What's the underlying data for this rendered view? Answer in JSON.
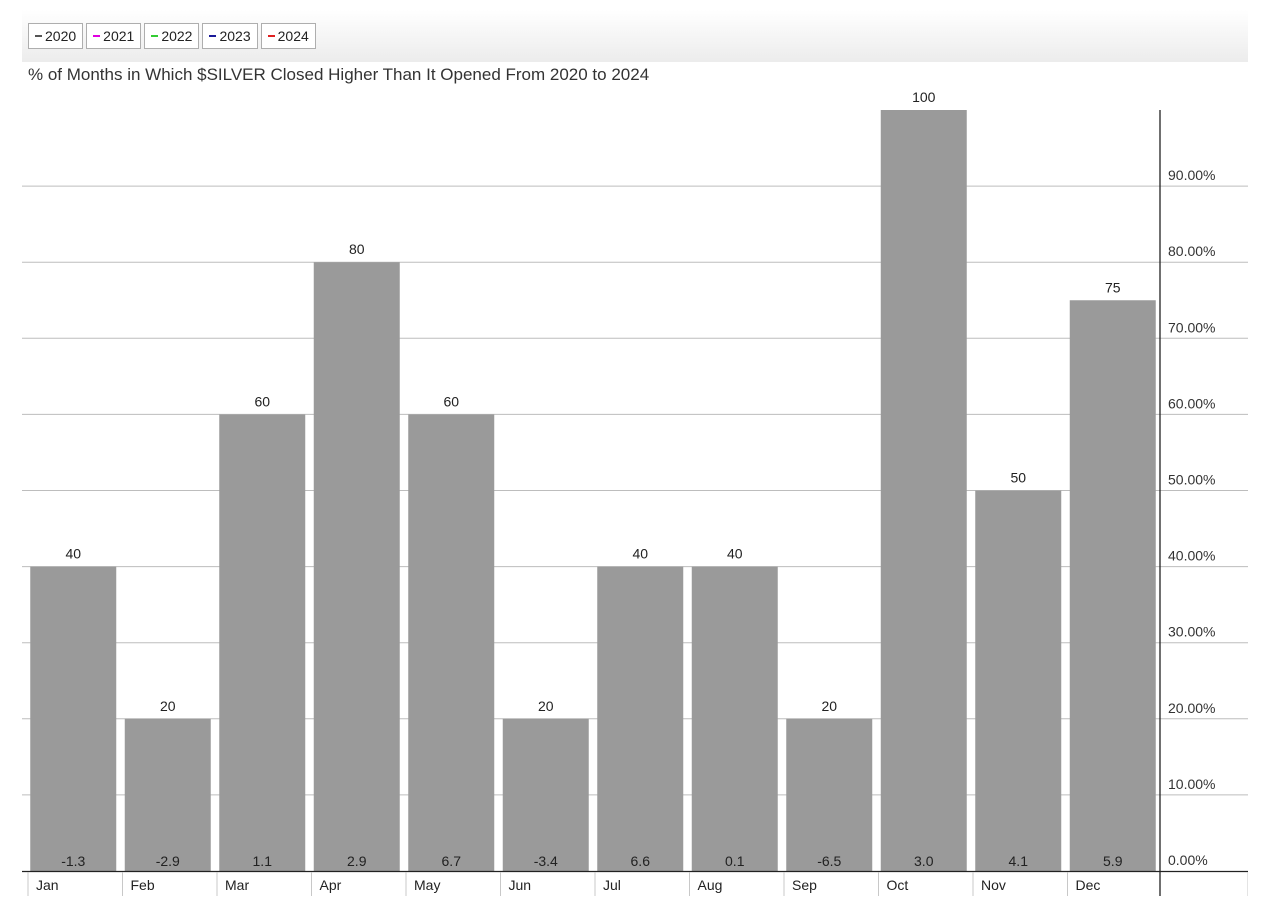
{
  "legend": [
    {
      "label": "2020",
      "color": "#555555"
    },
    {
      "label": "2021",
      "color": "#e000e0"
    },
    {
      "label": "2022",
      "color": "#33cc33"
    },
    {
      "label": "2023",
      "color": "#1a1a99"
    },
    {
      "label": "2024",
      "color": "#e02020"
    }
  ],
  "chart_data": {
    "type": "bar",
    "title": "% of Months in Which $SILVER Closed Higher Than It Opened From 2020 to 2024",
    "categories": [
      "Jan",
      "Feb",
      "Mar",
      "Apr",
      "May",
      "Jun",
      "Jul",
      "Aug",
      "Sep",
      "Oct",
      "Nov",
      "Dec"
    ],
    "values": [
      40,
      20,
      60,
      80,
      60,
      20,
      40,
      40,
      20,
      100,
      50,
      75
    ],
    "avg_change": [
      "-1.3",
      "-2.9",
      "1.1",
      "2.9",
      "6.7",
      "-3.4",
      "6.6",
      "0.1",
      "-6.5",
      "3.0",
      "4.1",
      "5.9"
    ],
    "ylim": [
      0,
      100
    ],
    "yticks": [
      "0.00%",
      "10.00%",
      "20.00%",
      "30.00%",
      "40.00%",
      "50.00%",
      "60.00%",
      "70.00%",
      "80.00%",
      "90.00%"
    ],
    "grid": true,
    "axis_position": "right",
    "bar_color": "#9a9a9a"
  }
}
